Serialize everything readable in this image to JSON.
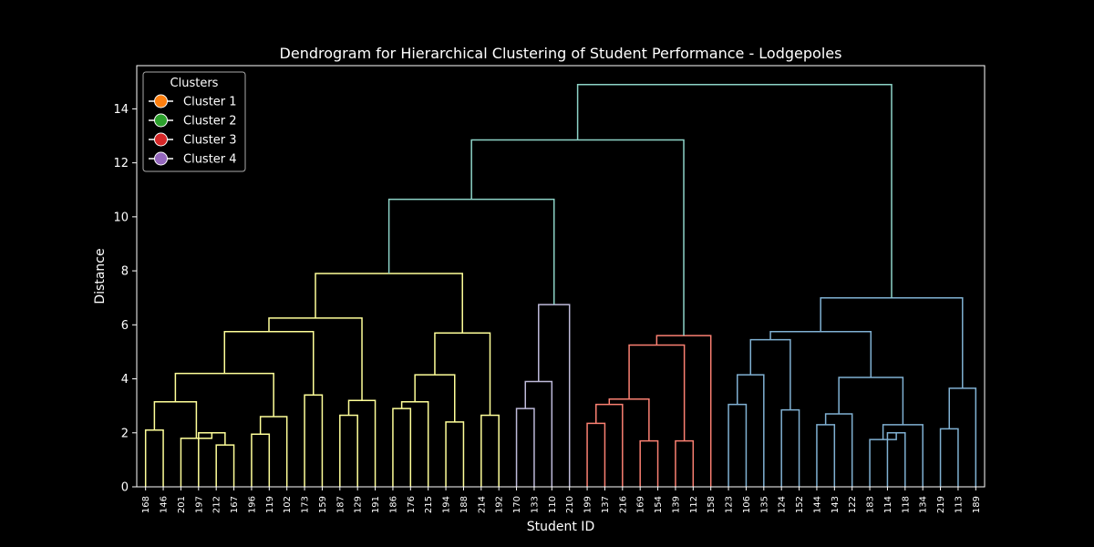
{
  "chart_data": {
    "type": "dendrogram",
    "title": "Dendrogram for Hierarchical Clustering of Student Performance - Lodgepoles",
    "xlabel": "Student ID",
    "ylabel": "Distance",
    "ylim": [
      0,
      15.6
    ],
    "yticks": [
      0,
      2,
      4,
      6,
      8,
      10,
      12,
      14
    ],
    "leaves": [
      "168",
      "146",
      "201",
      "197",
      "212",
      "167",
      "196",
      "119",
      "102",
      "173",
      "159",
      "187",
      "129",
      "191",
      "186",
      "176",
      "215",
      "194",
      "188",
      "214",
      "192",
      "170",
      "133",
      "110",
      "210",
      "199",
      "137",
      "216",
      "169",
      "154",
      "139",
      "112",
      "158",
      "123",
      "106",
      "135",
      "124",
      "152",
      "144",
      "143",
      "122",
      "183",
      "114",
      "118",
      "134",
      "219",
      "113",
      "189"
    ],
    "legend": {
      "title": "Clusters",
      "position": "top-left",
      "items": [
        {
          "label": "Cluster 1",
          "color": "#ff7f0e"
        },
        {
          "label": "Cluster 2",
          "color": "#2ca02c"
        },
        {
          "label": "Cluster 3",
          "color": "#d62728"
        },
        {
          "label": "Cluster 4",
          "color": "#9467bd"
        }
      ]
    },
    "link_colors": {
      "c1": "#ffff99",
      "c2": "#bebada",
      "c3": "#fb8072",
      "c4": "#80b1d3",
      "above": "#8dd3c7"
    },
    "merges": [
      {
        "a": "L0",
        "b": "L1",
        "h": 2.1,
        "c": "c1"
      },
      {
        "a": "L4",
        "b": "L5",
        "h": 1.55,
        "c": "c1"
      },
      {
        "a": "L3",
        "b": "m1",
        "h": 2.0,
        "c": "c1"
      },
      {
        "a": "L2",
        "b": "m2",
        "h": 1.8,
        "c": "c1"
      },
      {
        "a": "m0",
        "b": "m3",
        "h": 3.15,
        "c": "c1"
      },
      {
        "a": "L6",
        "b": "L7",
        "h": 1.95,
        "c": "c1"
      },
      {
        "a": "m5",
        "b": "L8",
        "h": 2.6,
        "c": "c1"
      },
      {
        "a": "m4",
        "b": "m6",
        "h": 4.2,
        "c": "c1"
      },
      {
        "a": "L9",
        "b": "L10",
        "h": 3.4,
        "c": "c1"
      },
      {
        "a": "m7",
        "b": "m8",
        "h": 5.75,
        "c": "c1"
      },
      {
        "a": "L11",
        "b": "L12",
        "h": 2.65,
        "c": "c1"
      },
      {
        "a": "m10",
        "b": "L13",
        "h": 3.2,
        "c": "c1"
      },
      {
        "a": "m9",
        "b": "m11",
        "h": 6.25,
        "c": "c1"
      },
      {
        "a": "L14",
        "b": "L15",
        "h": 2.9,
        "c": "c1"
      },
      {
        "a": "m13",
        "b": "L16",
        "h": 3.15,
        "c": "c1"
      },
      {
        "a": "L17",
        "b": "L18",
        "h": 2.4,
        "c": "c1"
      },
      {
        "a": "m14",
        "b": "m15",
        "h": 4.15,
        "c": "c1"
      },
      {
        "a": "L19",
        "b": "L20",
        "h": 2.65,
        "c": "c1"
      },
      {
        "a": "m16",
        "b": "m17",
        "h": 5.7,
        "c": "c1"
      },
      {
        "a": "m12",
        "b": "m18",
        "h": 7.9,
        "c": "c1"
      },
      {
        "a": "L21",
        "b": "L22",
        "h": 2.9,
        "c": "c2"
      },
      {
        "a": "m20",
        "b": "L23",
        "h": 3.9,
        "c": "c2"
      },
      {
        "a": "m21",
        "b": "L24",
        "h": 6.75,
        "c": "c2"
      },
      {
        "a": "m19",
        "b": "m22",
        "h": 10.65,
        "c": "above"
      },
      {
        "a": "L25",
        "b": "L26",
        "h": 2.35,
        "c": "c3"
      },
      {
        "a": "m24",
        "b": "L27",
        "h": 3.05,
        "c": "c3"
      },
      {
        "a": "L28",
        "b": "L29",
        "h": 1.7,
        "c": "c3"
      },
      {
        "a": "m25",
        "b": "m26",
        "h": 3.25,
        "c": "c3"
      },
      {
        "a": "L30",
        "b": "L31",
        "h": 1.7,
        "c": "c3"
      },
      {
        "a": "m27",
        "b": "m28",
        "h": 5.25,
        "c": "c3"
      },
      {
        "a": "m29",
        "b": "L32",
        "h": 5.6,
        "c": "c3"
      },
      {
        "a": "m23",
        "b": "m30",
        "h": 12.85,
        "c": "above"
      },
      {
        "a": "L33",
        "b": "L34",
        "h": 3.05,
        "c": "c4"
      },
      {
        "a": "m32",
        "b": "L35",
        "h": 4.15,
        "c": "c4"
      },
      {
        "a": "L36",
        "b": "L37",
        "h": 2.85,
        "c": "c4"
      },
      {
        "a": "m33",
        "b": "m34",
        "h": 5.45,
        "c": "c4"
      },
      {
        "a": "L38",
        "b": "L39",
        "h": 2.3,
        "c": "c4"
      },
      {
        "a": "m36",
        "b": "L40",
        "h": 2.7,
        "c": "c4"
      },
      {
        "a": "L42",
        "b": "L43",
        "h": 2.0,
        "c": "c4"
      },
      {
        "a": "L41",
        "b": "m38",
        "h": 1.75,
        "c": "c4"
      },
      {
        "a": "m39",
        "b": "L44",
        "h": 2.3,
        "c": "c4"
      },
      {
        "a": "m37",
        "b": "m40",
        "h": 4.05,
        "c": "c4"
      },
      {
        "a": "m35",
        "b": "m41",
        "h": 5.75,
        "c": "c4"
      },
      {
        "a": "L45",
        "b": "L46",
        "h": 2.15,
        "c": "c4"
      },
      {
        "a": "m43",
        "b": "L47",
        "h": 3.65,
        "c": "c4"
      },
      {
        "a": "m42",
        "b": "m44",
        "h": 7.0,
        "c": "c4"
      },
      {
        "a": "m31",
        "b": "m45",
        "h": 14.9,
        "c": "above"
      }
    ]
  }
}
